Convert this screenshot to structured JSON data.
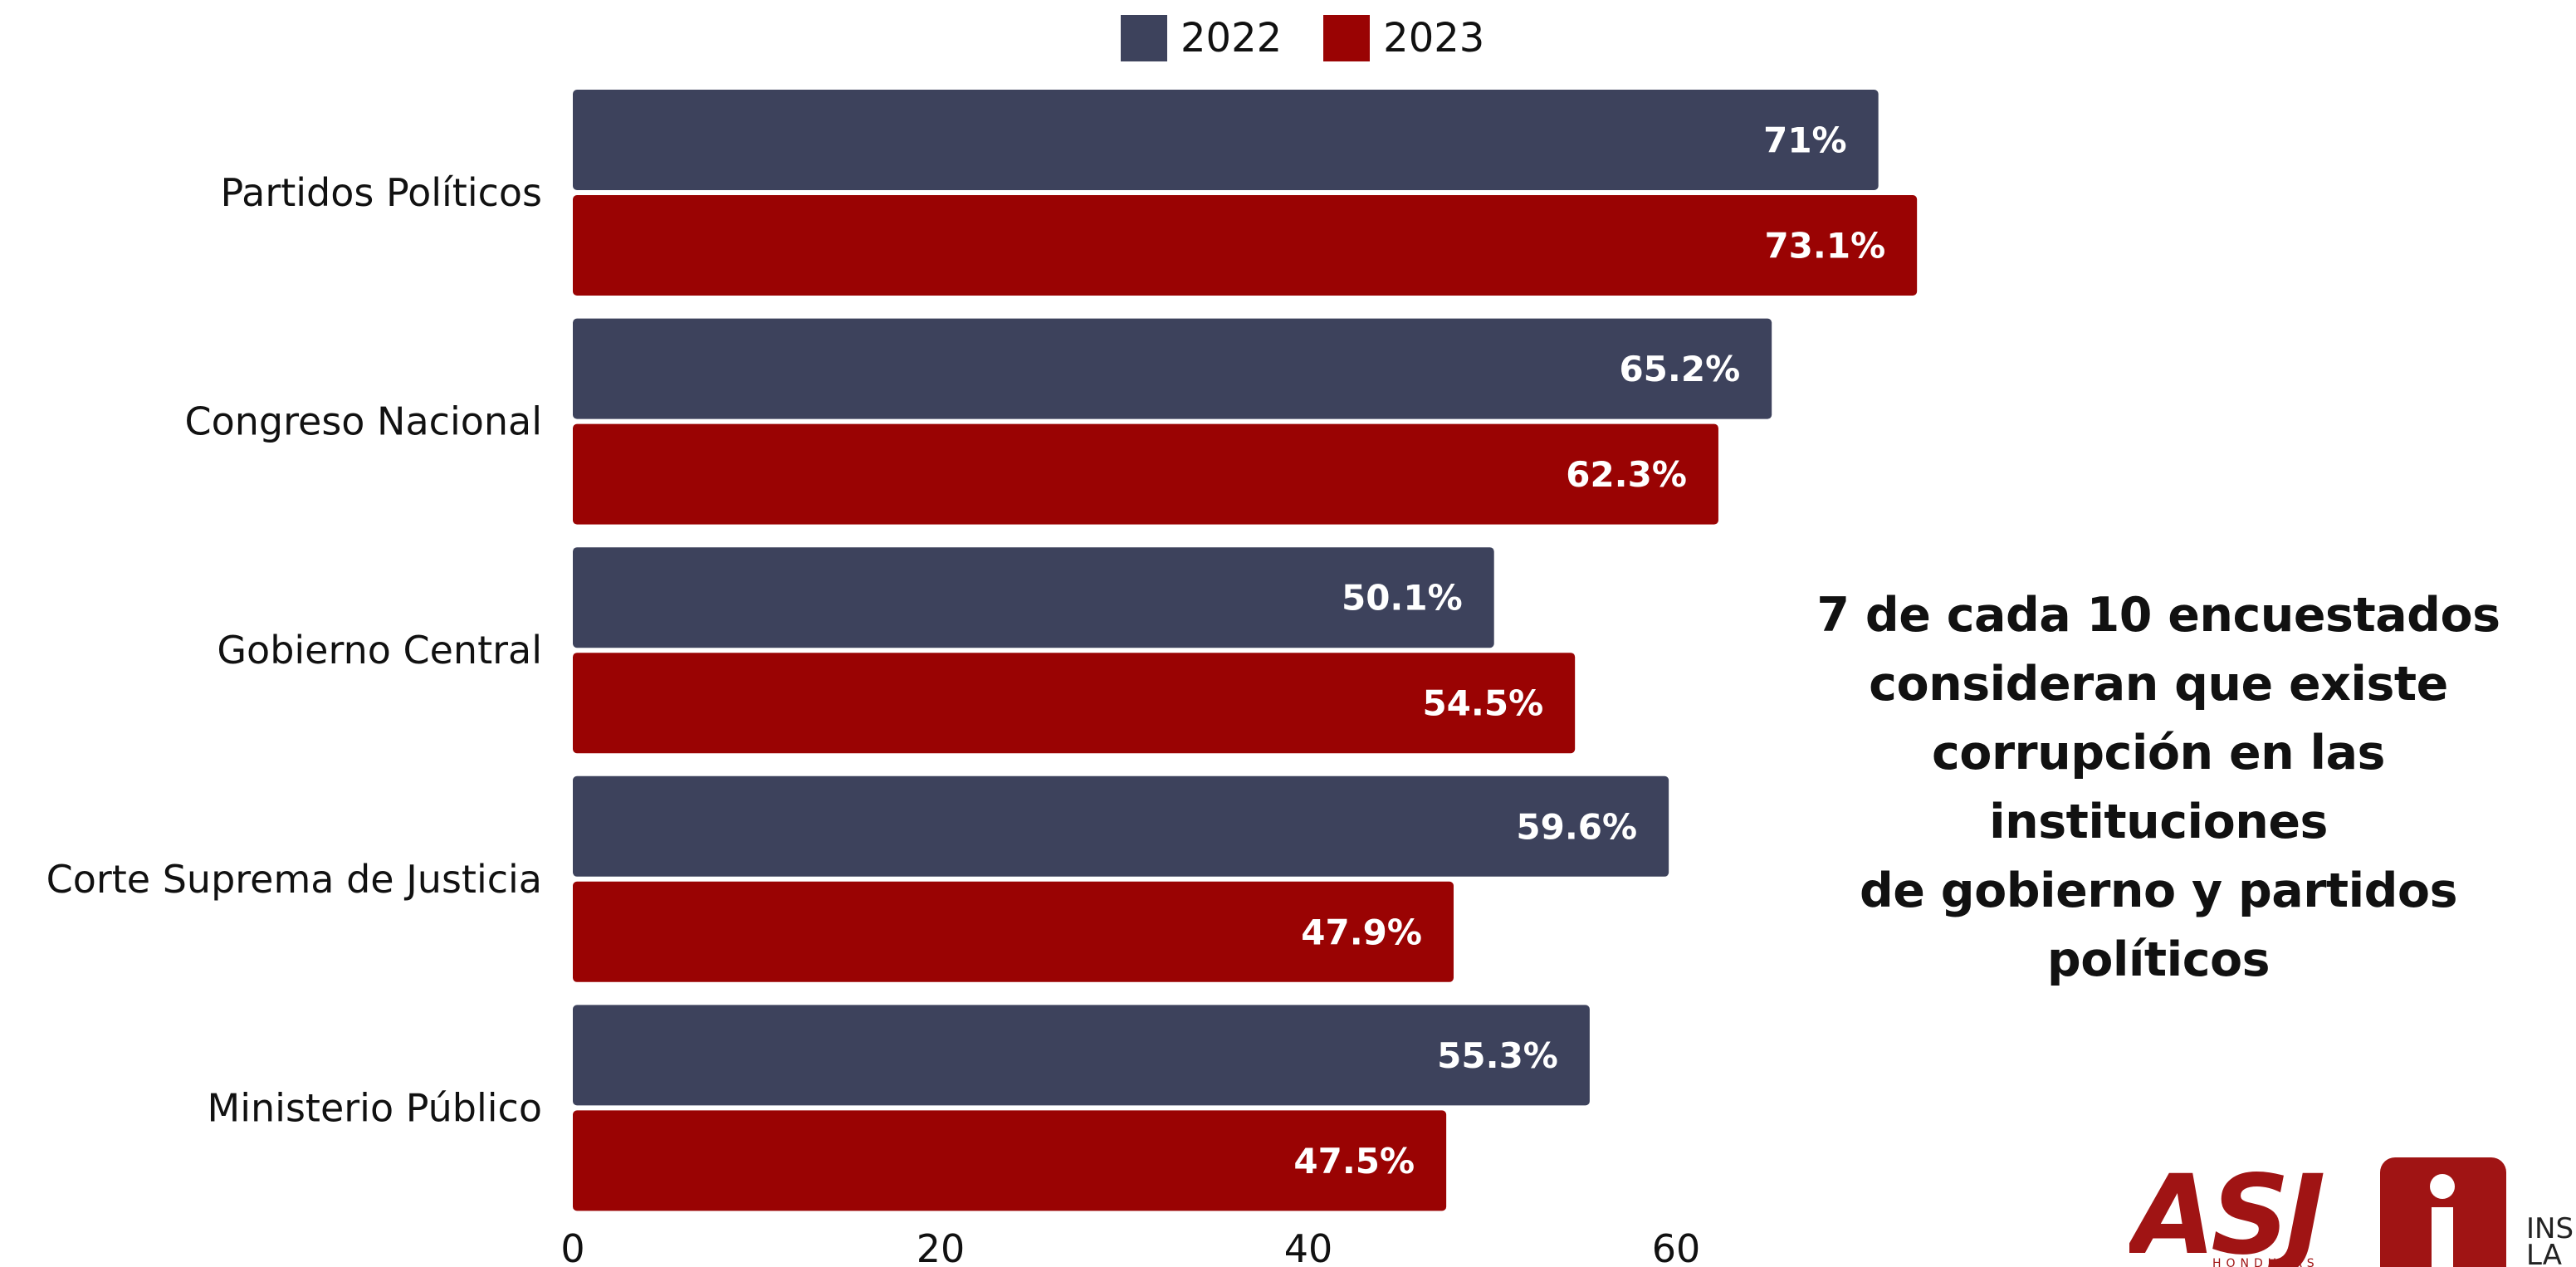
{
  "chart_data": {
    "type": "bar",
    "orientation": "horizontal",
    "categories": [
      "Partidos Políticos",
      "Congreso Nacional",
      "Gobierno Central",
      "Corte Suprema de Justicia",
      "Ministerio Público"
    ],
    "series": [
      {
        "name": "2022",
        "color": "#3d425c",
        "values": [
          71,
          65.2,
          50.1,
          59.6,
          55.3
        ],
        "labels": [
          "71%",
          "65.2%",
          "50.1%",
          "59.6%",
          "55.3%"
        ]
      },
      {
        "name": "2023",
        "color": "#9a0303",
        "values": [
          73.1,
          62.3,
          54.5,
          47.9,
          47.5
        ],
        "labels": [
          "73.1%",
          "62.3%",
          "54.5%",
          "47.9%",
          "47.5%"
        ]
      }
    ],
    "x_ticks": [
      0,
      20,
      40,
      60
    ],
    "xlim": [
      0,
      100
    ],
    "grid": false,
    "legend_position": "top-center"
  },
  "annotation": {
    "lines": [
      "7 de cada 10 encuestados",
      "consideran que existe",
      "corrupción en las instituciones",
      "de gobierno y partidos políticos"
    ]
  },
  "logo": {
    "main_text": "ASJ",
    "sub_text": "HONDURAS",
    "side_text_lines": [
      "INS",
      "LA"
    ],
    "color": "#a01414"
  }
}
